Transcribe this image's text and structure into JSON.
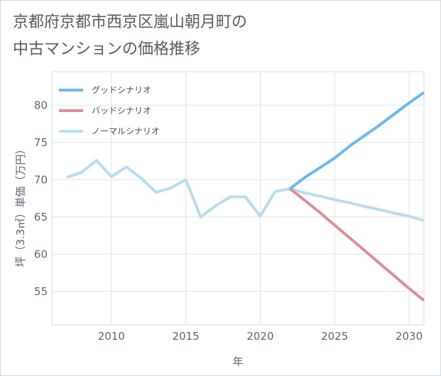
{
  "title_line1": "京都府京都市西京区嵐山朝月町の",
  "title_line2": "中古マンションの価格推移",
  "chart_data": {
    "type": "line",
    "title": "京都府京都市西京区嵐山朝月町の中古マンションの価格推移",
    "xlabel": "年",
    "ylabel": "坪（3.3㎡）単価（万円）",
    "xlim": [
      2006,
      2031
    ],
    "ylim": [
      50.5,
      84.5
    ],
    "xticks": [
      2010,
      2015,
      2020,
      2025,
      2030
    ],
    "yticks": [
      55,
      60,
      65,
      70,
      75,
      80
    ],
    "grid": true,
    "legend_position": "top-left",
    "series": [
      {
        "name": "グッドシナリオ",
        "color": "#6cb8ec",
        "x": [
          2022,
          2023,
          2024,
          2025,
          2026,
          2027,
          2028,
          2029,
          2030,
          2031
        ],
        "y": [
          68.8,
          70.3,
          71.6,
          72.9,
          74.5,
          75.9,
          77.3,
          78.8,
          80.3,
          81.7
        ]
      },
      {
        "name": "バッドシナリオ",
        "color": "#dc8e97",
        "x": [
          2022,
          2023,
          2024,
          2025,
          2026,
          2027,
          2028,
          2029,
          2030,
          2031
        ],
        "y": [
          68.8,
          67.2,
          65.6,
          63.9,
          62.2,
          60.5,
          58.8,
          57.1,
          55.4,
          53.8
        ]
      },
      {
        "name": "ノーマルシナリオ",
        "color": "#b9dcee",
        "x": [
          2007,
          2008,
          2009,
          2010,
          2011,
          2012,
          2013,
          2014,
          2015,
          2016,
          2017,
          2018,
          2019,
          2020,
          2021,
          2022,
          2023,
          2024,
          2025,
          2026,
          2027,
          2028,
          2029,
          2030,
          2031
        ],
        "y": [
          70.3,
          71.0,
          72.6,
          70.4,
          71.7,
          70.2,
          68.3,
          68.9,
          70.0,
          65.0,
          66.5,
          67.7,
          67.7,
          65.1,
          68.4,
          68.8,
          68.2,
          67.8,
          67.3,
          66.9,
          66.4,
          66.0,
          65.5,
          65.1,
          64.5
        ]
      }
    ]
  }
}
